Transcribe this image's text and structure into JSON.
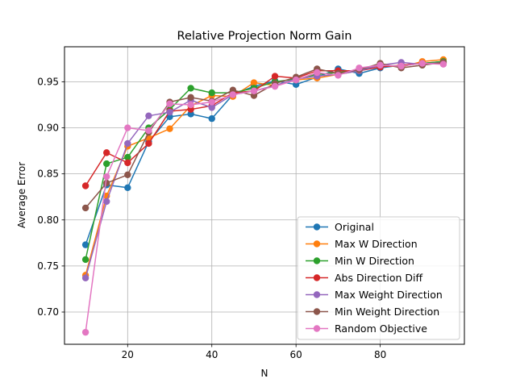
{
  "chart_data": {
    "type": "line",
    "title": "Relative Projection Norm Gain",
    "xlabel": "N",
    "ylabel": "Average Error",
    "xlim": [
      5,
      100
    ],
    "ylim": [
      0.665,
      0.988
    ],
    "xticks": [
      20,
      40,
      60,
      80
    ],
    "yticks": [
      0.7,
      0.75,
      0.8,
      0.85,
      0.9,
      0.95
    ],
    "grid": true,
    "legend_position": "lower-right",
    "x": [
      10,
      15,
      20,
      25,
      30,
      35,
      40,
      45,
      50,
      55,
      60,
      65,
      70,
      75,
      80,
      85,
      90,
      95
    ],
    "series": [
      {
        "name": "Original",
        "color": "#1f77b4",
        "values": [
          0.773,
          0.838,
          0.835,
          0.885,
          0.912,
          0.915,
          0.91,
          0.936,
          0.945,
          0.951,
          0.947,
          0.955,
          0.964,
          0.959,
          0.965,
          0.968,
          0.97,
          0.972
        ]
      },
      {
        "name": "Max W Direction",
        "color": "#ff7f0e",
        "values": [
          0.74,
          0.826,
          0.88,
          0.889,
          0.899,
          0.924,
          0.935,
          0.934,
          0.949,
          0.946,
          0.952,
          0.954,
          0.958,
          0.962,
          0.968,
          0.966,
          0.972,
          0.974
        ]
      },
      {
        "name": "Min W Direction",
        "color": "#2ca02c",
        "values": [
          0.757,
          0.861,
          0.868,
          0.9,
          0.92,
          0.943,
          0.938,
          0.938,
          0.943,
          0.95,
          0.953,
          0.958,
          0.96,
          0.963,
          0.968,
          0.967,
          0.97,
          0.972
        ]
      },
      {
        "name": "Abs Direction Diff",
        "color": "#d62728",
        "values": [
          0.837,
          0.873,
          0.862,
          0.883,
          0.918,
          0.92,
          0.924,
          0.938,
          0.94,
          0.956,
          0.954,
          0.962,
          0.962,
          0.962,
          0.966,
          0.968,
          0.97,
          0.97
        ]
      },
      {
        "name": "Max Weight Direction",
        "color": "#9467bd",
        "values": [
          0.737,
          0.82,
          0.883,
          0.913,
          0.917,
          0.93,
          0.922,
          0.936,
          0.94,
          0.946,
          0.953,
          0.956,
          0.958,
          0.962,
          0.968,
          0.971,
          0.969,
          0.971
        ]
      },
      {
        "name": "Min Weight Direction",
        "color": "#8c564b",
        "values": [
          0.813,
          0.84,
          0.849,
          0.895,
          0.928,
          0.933,
          0.929,
          0.941,
          0.935,
          0.948,
          0.955,
          0.964,
          0.959,
          0.963,
          0.97,
          0.965,
          0.968,
          0.971
        ]
      },
      {
        "name": "Random Objective",
        "color": "#e377c2",
        "values": [
          0.678,
          0.847,
          0.9,
          0.897,
          0.926,
          0.925,
          0.928,
          0.936,
          0.94,
          0.945,
          0.952,
          0.96,
          0.957,
          0.965,
          0.968,
          0.967,
          0.97,
          0.969
        ]
      }
    ]
  }
}
